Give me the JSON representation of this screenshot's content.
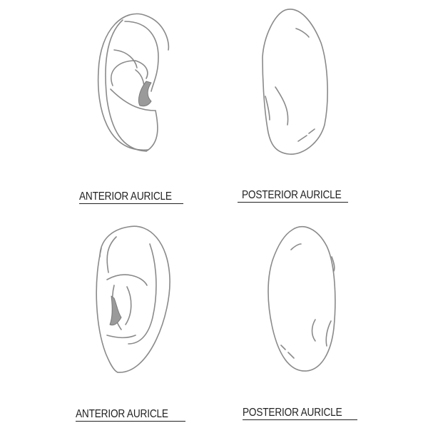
{
  "diagram": {
    "captions": {
      "top_left": "ANTERIOR AURICLE",
      "top_right": "POSTERIOR AURICLE",
      "bottom_left": "ANTERIOR AURICLE",
      "bottom_right": "POSTERIOR AURICLE"
    },
    "colors": {
      "stroke": "#8a8a8a",
      "fill": "#9a9a9a",
      "text": "#222222",
      "background": "#ffffff"
    }
  }
}
